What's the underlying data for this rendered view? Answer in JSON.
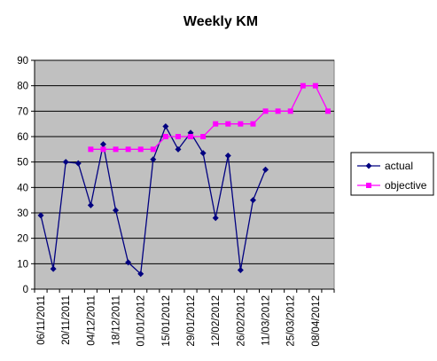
{
  "chart_data": {
    "type": "line",
    "title": "Weekly KM",
    "xlabel": "",
    "ylabel": "",
    "ylim": [
      0,
      90
    ],
    "yticks": [
      0,
      10,
      20,
      30,
      40,
      50,
      60,
      70,
      80,
      90
    ],
    "grid": true,
    "legend_position": "right",
    "plot_background": "#c0c0c0",
    "x": [
      "06/11/2011",
      "13/11/2011",
      "20/11/2011",
      "27/11/2011",
      "04/12/2011",
      "11/12/2011",
      "18/12/2011",
      "25/12/2011",
      "01/01/2012",
      "08/01/2012",
      "15/01/2012",
      "22/01/2012",
      "29/01/2012",
      "05/02/2012",
      "12/02/2012",
      "19/02/2012",
      "26/02/2012",
      "04/03/2012",
      "11/03/2012",
      "18/03/2012",
      "25/03/2012",
      "01/04/2012",
      "08/04/2012",
      "15/04/2012"
    ],
    "x_tick_labels": [
      "06/11/2011",
      "20/11/2011",
      "04/12/2011",
      "18/12/2011",
      "01/01/2012",
      "15/01/2012",
      "29/01/2012",
      "12/02/2012",
      "26/02/2012",
      "11/03/2012",
      "25/03/2012",
      "08/04/2012"
    ],
    "series": [
      {
        "name": "actual",
        "color": "#000080",
        "marker": "diamond",
        "values": [
          29,
          8,
          50,
          49.5,
          33,
          57,
          31,
          10.5,
          6,
          51,
          64,
          55,
          61.5,
          53.5,
          28,
          52.5,
          7.5,
          35,
          47,
          null,
          null,
          null,
          null,
          null
        ]
      },
      {
        "name": "objective",
        "color": "#ff00ff",
        "marker": "square",
        "values": [
          null,
          null,
          null,
          null,
          55,
          55,
          55,
          55,
          55,
          55,
          60,
          60,
          60,
          60,
          65,
          65,
          65,
          65,
          70,
          70,
          70,
          80,
          80,
          70
        ]
      }
    ]
  }
}
